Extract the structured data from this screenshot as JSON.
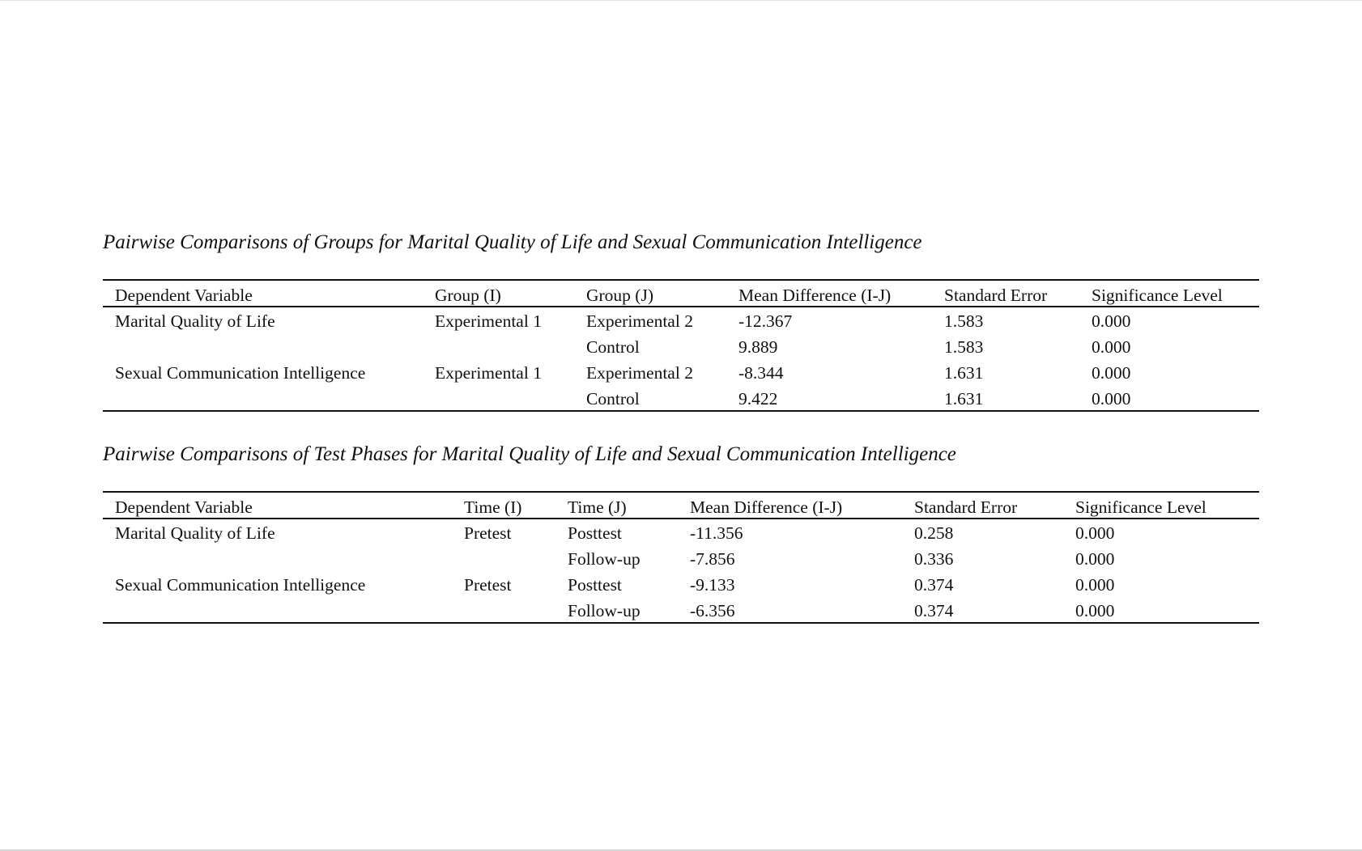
{
  "table1": {
    "title": "Pairwise Comparisons of Groups for Marital Quality of Life and Sexual Communication Intelligence",
    "headers": [
      "Dependent Variable",
      "Group (I)",
      "Group (J)",
      "Mean Difference (I-J)",
      "Standard Error",
      "Significance Level"
    ],
    "rows": [
      [
        "Marital Quality of Life",
        "Experimental 1",
        "Experimental 2",
        "-12.367",
        "1.583",
        "0.000"
      ],
      [
        "",
        "",
        "Control",
        "9.889",
        "1.583",
        "0.000"
      ],
      [
        "Sexual Communication Intelligence",
        "Experimental 1",
        "Experimental 2",
        "-8.344",
        "1.631",
        "0.000"
      ],
      [
        "",
        "",
        "Control",
        "9.422",
        "1.631",
        "0.000"
      ]
    ]
  },
  "table2": {
    "title": "Pairwise Comparisons of Test Phases for Marital Quality of Life and Sexual Communication Intelligence",
    "headers": [
      "Dependent Variable",
      "Time (I)",
      "Time (J)",
      "Mean Difference (I-J)",
      "Standard Error",
      "Significance Level"
    ],
    "rows": [
      [
        "Marital Quality of Life",
        "Pretest",
        "Posttest",
        "-11.356",
        "0.258",
        "0.000"
      ],
      [
        "",
        "",
        "Follow-up",
        "-7.856",
        "0.336",
        "0.000"
      ],
      [
        "Sexual Communication Intelligence",
        "Pretest",
        "Posttest",
        "-9.133",
        "0.374",
        "0.000"
      ],
      [
        "",
        "",
        "Follow-up",
        "-6.356",
        "0.374",
        "0.000"
      ]
    ]
  }
}
